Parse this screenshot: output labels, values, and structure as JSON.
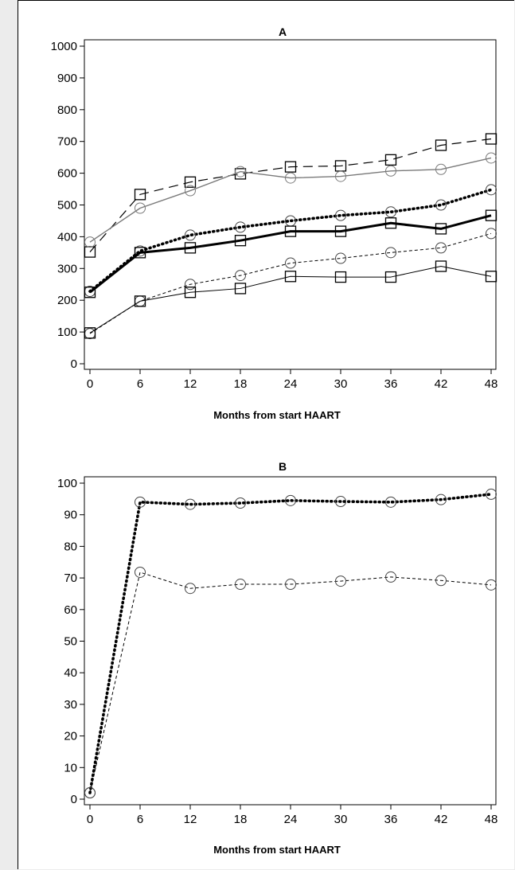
{
  "charts": {
    "a": {
      "title": "A",
      "xlabel": "Months from start HAART"
    },
    "b": {
      "title": "B",
      "xlabel": "Months from start HAART"
    }
  },
  "chart_data": [
    {
      "type": "line",
      "title": "A",
      "xlabel": "Months from start HAART",
      "ylabel": "",
      "x": [
        0,
        6,
        12,
        18,
        24,
        30,
        36,
        42,
        48
      ],
      "xticks": [
        0,
        6,
        12,
        18,
        24,
        30,
        36,
        42,
        48
      ],
      "yticks": [
        0,
        100,
        200,
        300,
        400,
        500,
        600,
        700,
        800,
        900,
        1000
      ],
      "xlim": [
        0,
        48
      ],
      "ylim": [
        0,
        1000
      ],
      "grid": false,
      "series": [
        {
          "style": "long-dash",
          "color": "#000000",
          "marker": "square",
          "values": [
            352,
            533,
            572,
            598,
            620,
            623,
            642,
            688,
            708
          ]
        },
        {
          "style": "solid-gray",
          "color": "#7a7a7a",
          "marker": "circle",
          "values": [
            383,
            490,
            545,
            605,
            585,
            590,
            607,
            612,
            648
          ]
        },
        {
          "style": "heavy-dotted",
          "color": "#000000",
          "marker": "circle",
          "values": [
            228,
            355,
            405,
            430,
            450,
            467,
            478,
            500,
            548
          ]
        },
        {
          "style": "heavy-solid",
          "color": "#000000",
          "marker": "square",
          "values": [
            225,
            350,
            365,
            388,
            417,
            417,
            443,
            425,
            467
          ]
        },
        {
          "style": "fine-dashed",
          "color": "#000000",
          "marker": "circle",
          "values": [
            95,
            197,
            250,
            278,
            317,
            332,
            350,
            365,
            410
          ]
        },
        {
          "style": "thin-solid",
          "color": "#000000",
          "marker": "square",
          "values": [
            97,
            197,
            225,
            237,
            275,
            273,
            273,
            307,
            275
          ]
        }
      ]
    },
    {
      "type": "line",
      "title": "B",
      "xlabel": "Months from start HAART",
      "ylabel": "",
      "x": [
        0,
        6,
        12,
        18,
        24,
        30,
        36,
        42,
        48
      ],
      "xticks": [
        0,
        6,
        12,
        18,
        24,
        30,
        36,
        42,
        48
      ],
      "yticks": [
        0,
        10,
        20,
        30,
        40,
        50,
        60,
        70,
        80,
        90,
        100
      ],
      "xlim": [
        0,
        48
      ],
      "ylim": [
        0,
        100
      ],
      "grid": false,
      "series": [
        {
          "style": "heavy-dotted",
          "color": "#000000",
          "marker": "circle",
          "values": [
            2,
            94,
            93.3,
            93.7,
            94.5,
            94.2,
            94,
            94.8,
            96.5
          ]
        },
        {
          "style": "fine-dashed",
          "color": "#000000",
          "marker": "circle",
          "values": [
            2,
            71.8,
            66.7,
            68,
            68,
            69,
            70.3,
            69.2,
            67.8
          ]
        }
      ]
    }
  ]
}
